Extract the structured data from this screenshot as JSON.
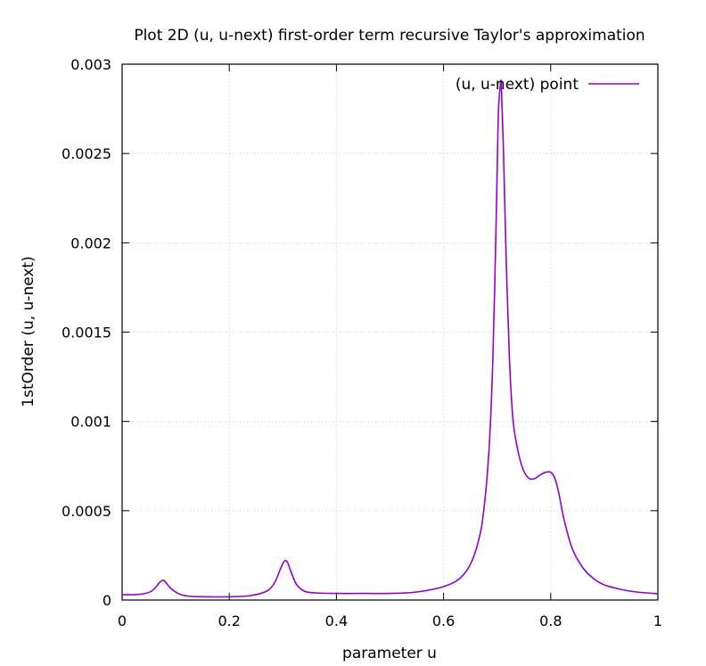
{
  "chart_data": {
    "type": "line",
    "title": "Plot 2D (u, u-next) first-order term recursive Taylor's approximation",
    "xlabel": "parameter u",
    "ylabel": "1stOrder (u, u-next)",
    "xlim": [
      0,
      1
    ],
    "ylim": [
      0,
      0.003
    ],
    "x_ticks": [
      "0",
      "0.2",
      "0.4",
      "0.6",
      "0.8",
      "1"
    ],
    "y_ticks": [
      "0",
      "0.0005",
      "0.001",
      "0.0015",
      "0.002",
      "0.0025",
      "0.003"
    ],
    "grid": true,
    "legend_position": "top-right",
    "series": [
      {
        "name": "(u, u-next) point",
        "color": "#9400d3",
        "x": [
          0.0,
          0.02,
          0.04,
          0.055,
          0.065,
          0.072,
          0.078,
          0.085,
          0.095,
          0.11,
          0.13,
          0.16,
          0.2,
          0.24,
          0.27,
          0.285,
          0.295,
          0.302,
          0.308,
          0.315,
          0.325,
          0.34,
          0.36,
          0.4,
          0.45,
          0.5,
          0.55,
          0.6,
          0.63,
          0.65,
          0.665,
          0.675,
          0.685,
          0.692,
          0.698,
          0.702,
          0.706,
          0.708,
          0.712,
          0.717,
          0.723,
          0.73,
          0.74,
          0.75,
          0.76,
          0.77,
          0.78,
          0.79,
          0.8,
          0.808,
          0.815,
          0.825,
          0.84,
          0.86,
          0.88,
          0.9,
          0.93,
          0.96,
          1.0
        ],
        "y": [
          3e-05,
          3e-05,
          3.5e-05,
          5e-05,
          8e-05,
          0.000105,
          0.00011,
          8.5e-05,
          5.5e-05,
          3e-05,
          2e-05,
          1.8e-05,
          1.8e-05,
          2.5e-05,
          5e-05,
          0.0001,
          0.00017,
          0.000215,
          0.000215,
          0.00016,
          9e-05,
          5e-05,
          4e-05,
          3.7e-05,
          3.7e-05,
          3.7e-05,
          4.5e-05,
          7.5e-05,
          0.00012,
          0.0002,
          0.00033,
          0.0005,
          0.00085,
          0.00135,
          0.0021,
          0.0027,
          0.00288,
          0.00287,
          0.0025,
          0.0019,
          0.00135,
          0.001,
          0.00082,
          0.00072,
          0.00068,
          0.00068,
          0.0007,
          0.000715,
          0.000715,
          0.00068,
          0.0006,
          0.00045,
          0.00029,
          0.00018,
          0.00012,
          8.5e-05,
          6e-05,
          4.5e-05,
          3.5e-05
        ]
      }
    ]
  }
}
